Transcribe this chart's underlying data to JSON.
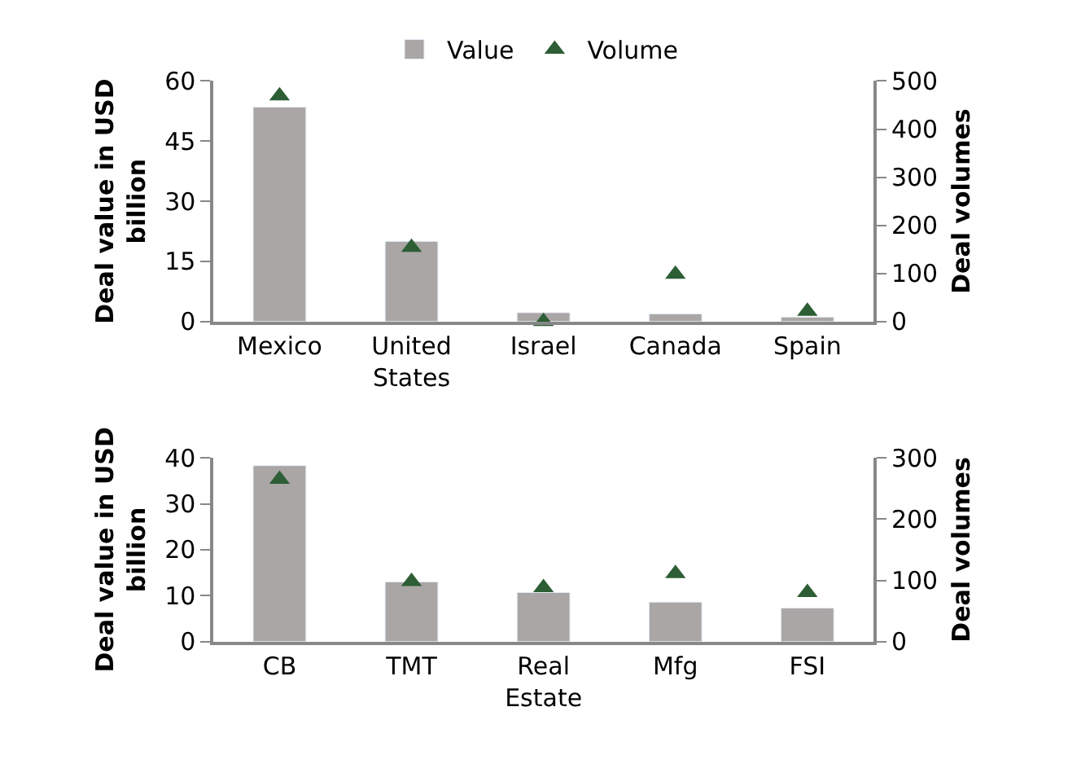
{
  "chart_data": [
    {
      "type": "bar",
      "ylabel": "Deal value in USD billion",
      "y2label": "Deal volumes",
      "categories": [
        "Mexico",
        "United States",
        "Israel",
        "Canada",
        "Spain"
      ],
      "ylim": [
        0,
        60
      ],
      "yticks": [
        0,
        15,
        30,
        45,
        60
      ],
      "y2lim": [
        0,
        500
      ],
      "y2ticks": [
        0,
        100,
        200,
        300,
        400,
        500
      ],
      "legend": "top",
      "series": [
        {
          "name": "Value",
          "color": "#aaa6a5",
          "values": [
            53.5,
            20.0,
            2.2,
            1.9,
            1.1
          ]
        },
        {
          "name": "Volume",
          "type": "scatter",
          "axis": "y2",
          "marker": "triangle",
          "color": "#2d5e35",
          "values": [
            469,
            154,
            0,
            98,
            21
          ]
        }
      ]
    },
    {
      "type": "bar",
      "ylabel": "Deal value in USD billion",
      "y2label": "Deal volumes",
      "categories": [
        "CB",
        "TMT",
        "Real Estate",
        "Mfg",
        "FSI"
      ],
      "ylim": [
        0,
        40
      ],
      "yticks": [
        0,
        10,
        20,
        30,
        40
      ],
      "y2lim": [
        0,
        300
      ],
      "y2ticks": [
        0,
        100,
        200,
        300
      ],
      "legend": false,
      "series": [
        {
          "color": "#aaa6a5",
          "values": [
            38.3,
            13.0,
            10.7,
            8.6,
            7.3
          ]
        },
        {
          "type": "scatter",
          "axis": "y2",
          "marker": "triangle",
          "color": "#2d5e35",
          "values": [
            265,
            98,
            88,
            111,
            80
          ]
        }
      ]
    }
  ]
}
